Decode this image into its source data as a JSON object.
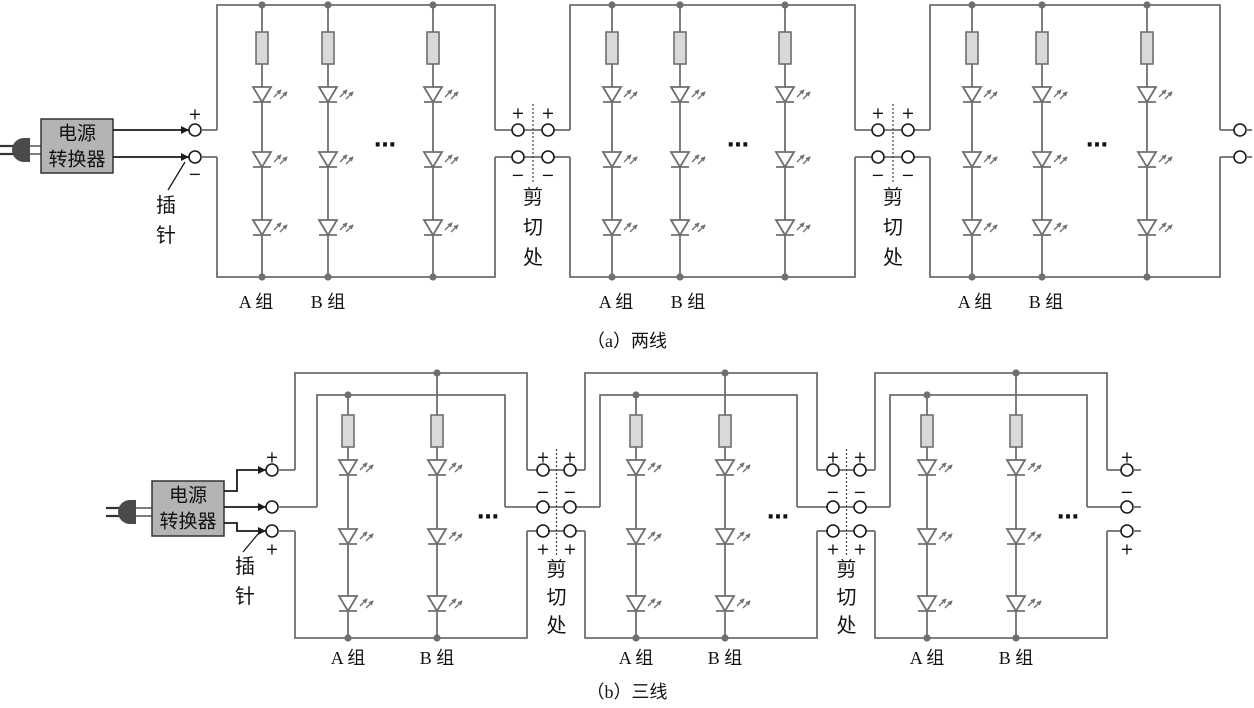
{
  "diagram_a": {
    "converter": {
      "line1": "电源",
      "line2": "转换器"
    },
    "pin_label": [
      "插",
      "针"
    ],
    "plus": "+",
    "minus": "−",
    "cut_label": [
      "剪",
      "切",
      "处"
    ],
    "ellipsis": "…",
    "group_labels": [
      "A 组",
      "B 组"
    ],
    "caption": "（a）两线"
  },
  "diagram_b": {
    "converter": {
      "line1": "电源",
      "line2": "转换器"
    },
    "pin_label": [
      "插",
      "针"
    ],
    "plus": "+",
    "minus": "−",
    "cut_label": [
      "剪",
      "切",
      "处"
    ],
    "ellipsis": "…",
    "group_labels": [
      "A 组",
      "B 组"
    ],
    "caption": "（b）三线"
  },
  "colors": {
    "wire": "#6f6f6f",
    "terminal": "#1a1a1a",
    "converter_fill": "#b4b4b4",
    "resistor_fill": "#d9d9d9",
    "plug_fill": "#4a4a4a"
  }
}
